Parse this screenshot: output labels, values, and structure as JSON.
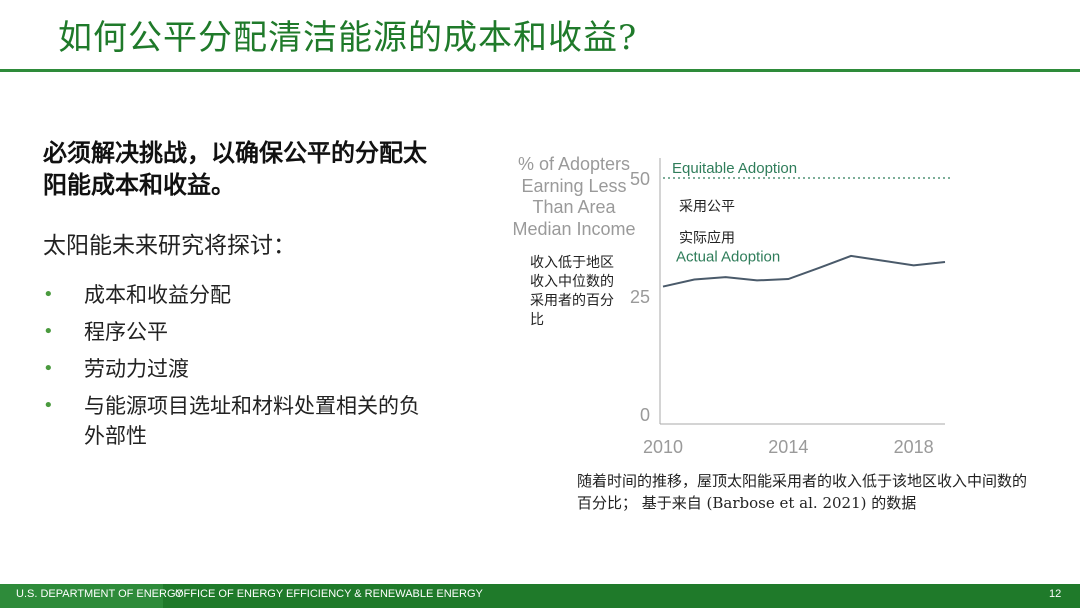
{
  "header": {
    "title": "如何公平分配清洁能源的成本和收益?"
  },
  "main": {
    "lead": "必须解决挑战，以确保公平的分配太阳能成本和收益。",
    "intro": "太阳能未来研究将探讨：",
    "bullets": [
      "成本和收益分配",
      "程序公平",
      "劳动力过渡",
      "与能源项目选址和材料处置相关的负外部性"
    ]
  },
  "chart_data": {
    "type": "line",
    "ylabel": "% of Adopters Earning Less Than Area Median Income",
    "ylabel_cn": "收入低于地区收入中位数的采用者的百分比",
    "yticks": [
      0,
      25,
      50
    ],
    "xticks": [
      2010,
      2014,
      2018
    ],
    "xlim": [
      2010,
      2019
    ],
    "ylim": [
      0,
      50
    ],
    "reference_line": {
      "label": "Equitable Adoption",
      "label_cn": "采用公平",
      "value": 50
    },
    "series": [
      {
        "name": "Actual Adoption",
        "name_cn": "实际应用",
        "x": [
          2010,
          2011,
          2012,
          2013,
          2014,
          2015,
          2016,
          2017,
          2018,
          2019
        ],
        "y": [
          27,
          28.5,
          29,
          28.3,
          28.6,
          31,
          33.5,
          32.5,
          31.5,
          32.2
        ]
      }
    ],
    "colors": {
      "series": "#4a5a6a",
      "reference": "#2f7d5a",
      "axis": "#aaaaaa",
      "tick_text": "#9a9a9a"
    }
  },
  "caption": "随着时间的推移，屋顶太阳能采用者的收入低于该地区收入中间数的百分比； 基于来自 (Barbose et al. 2021) 的数据",
  "footer": {
    "department": "U.S. DEPARTMENT OF ENERGY",
    "office": "OFFICE OF ENERGY EFFICIENCY & RENEWABLE ENERGY",
    "page": "12"
  }
}
